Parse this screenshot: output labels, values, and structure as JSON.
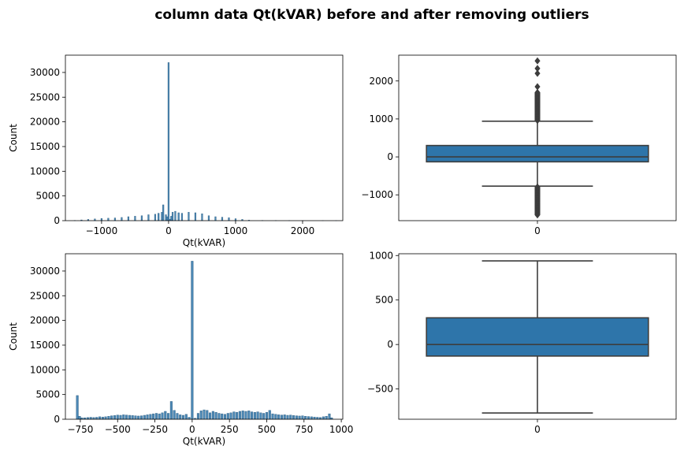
{
  "figure": {
    "title": "column data Qt(kVAR) before and after removing outliers",
    "colors": {
      "hist_fill": "#4c88b5",
      "hist_edge": "#2a5a7e",
      "box_fill": "#2e75aa",
      "box_line": "#3d3d3d"
    }
  },
  "chart_data": [
    {
      "id": "hist_before",
      "type": "bar",
      "title": "",
      "xlabel": "Qt(kVAR)",
      "ylabel": "Count",
      "xlim": [
        -1540,
        2600
      ],
      "ylim": [
        0,
        33500
      ],
      "xticks": [
        -1000,
        0,
        1000,
        2000
      ],
      "yticks": [
        0,
        5000,
        10000,
        15000,
        20000,
        25000,
        30000
      ],
      "bin_width": 21,
      "bins": [
        {
          "x": -1400,
          "y": 50
        },
        {
          "x": -1300,
          "y": 150
        },
        {
          "x": -1200,
          "y": 250
        },
        {
          "x": -1100,
          "y": 350
        },
        {
          "x": -1000,
          "y": 450
        },
        {
          "x": -900,
          "y": 500
        },
        {
          "x": -800,
          "y": 550
        },
        {
          "x": -700,
          "y": 650
        },
        {
          "x": -600,
          "y": 800
        },
        {
          "x": -500,
          "y": 900
        },
        {
          "x": -400,
          "y": 1000
        },
        {
          "x": -300,
          "y": 1200
        },
        {
          "x": -200,
          "y": 1300
        },
        {
          "x": -150,
          "y": 1500
        },
        {
          "x": -100,
          "y": 1700
        },
        {
          "x": -80,
          "y": 3200
        },
        {
          "x": -40,
          "y": 1200
        },
        {
          "x": -20,
          "y": 800
        },
        {
          "x": 0,
          "y": 32000
        },
        {
          "x": 20,
          "y": 300
        },
        {
          "x": 40,
          "y": 900
        },
        {
          "x": 60,
          "y": 1700
        },
        {
          "x": 100,
          "y": 1900
        },
        {
          "x": 150,
          "y": 1600
        },
        {
          "x": 200,
          "y": 1500
        },
        {
          "x": 300,
          "y": 1700
        },
        {
          "x": 400,
          "y": 1600
        },
        {
          "x": 500,
          "y": 1400
        },
        {
          "x": 600,
          "y": 1000
        },
        {
          "x": 700,
          "y": 800
        },
        {
          "x": 800,
          "y": 700
        },
        {
          "x": 900,
          "y": 600
        },
        {
          "x": 1000,
          "y": 400
        },
        {
          "x": 1100,
          "y": 250
        },
        {
          "x": 1200,
          "y": 100
        },
        {
          "x": 1400,
          "y": 50
        },
        {
          "x": 1600,
          "y": 30
        },
        {
          "x": 1800,
          "y": 20
        },
        {
          "x": 2000,
          "y": 10
        },
        {
          "x": 2300,
          "y": 8
        },
        {
          "x": 2500,
          "y": 5
        }
      ]
    },
    {
      "id": "box_before",
      "type": "box",
      "xticks": [
        "0"
      ],
      "ylim": [
        -1680,
        2680
      ],
      "yticks": [
        -1000,
        0,
        1000,
        2000
      ],
      "q1": -130,
      "median": 0,
      "q3": 300,
      "whisker_low": -770,
      "whisker_high": 940,
      "outliers_low_range": [
        -1530,
        -790
      ],
      "outliers_high_range": [
        960,
        1700
      ],
      "outliers_high_points": [
        1850,
        2200,
        2330,
        2530
      ]
    },
    {
      "id": "hist_after",
      "type": "bar",
      "title": "",
      "xlabel": "Qt(kVAR)",
      "ylabel": "Count",
      "xlim": [
        -850,
        1010
      ],
      "ylim": [
        0,
        33500
      ],
      "xticks": [
        -750,
        -500,
        -250,
        0,
        250,
        500,
        750,
        1000
      ],
      "yticks": [
        0,
        5000,
        10000,
        15000,
        20000,
        25000,
        30000
      ],
      "bin_width": 14,
      "bins": [
        {
          "x": -770,
          "y": 4800
        },
        {
          "x": -755,
          "y": 600
        },
        {
          "x": -740,
          "y": 300
        },
        {
          "x": -720,
          "y": 300
        },
        {
          "x": -700,
          "y": 350
        },
        {
          "x": -680,
          "y": 400
        },
        {
          "x": -660,
          "y": 350
        },
        {
          "x": -640,
          "y": 400
        },
        {
          "x": -620,
          "y": 500
        },
        {
          "x": -600,
          "y": 450
        },
        {
          "x": -580,
          "y": 500
        },
        {
          "x": -560,
          "y": 600
        },
        {
          "x": -540,
          "y": 700
        },
        {
          "x": -520,
          "y": 750
        },
        {
          "x": -500,
          "y": 850
        },
        {
          "x": -480,
          "y": 800
        },
        {
          "x": -460,
          "y": 900
        },
        {
          "x": -440,
          "y": 850
        },
        {
          "x": -420,
          "y": 800
        },
        {
          "x": -400,
          "y": 750
        },
        {
          "x": -380,
          "y": 700
        },
        {
          "x": -360,
          "y": 650
        },
        {
          "x": -340,
          "y": 700
        },
        {
          "x": -320,
          "y": 800
        },
        {
          "x": -300,
          "y": 900
        },
        {
          "x": -280,
          "y": 1000
        },
        {
          "x": -260,
          "y": 1100
        },
        {
          "x": -240,
          "y": 1200
        },
        {
          "x": -220,
          "y": 1100
        },
        {
          "x": -200,
          "y": 1300
        },
        {
          "x": -180,
          "y": 1600
        },
        {
          "x": -160,
          "y": 1200
        },
        {
          "x": -140,
          "y": 3600
        },
        {
          "x": -120,
          "y": 1800
        },
        {
          "x": -100,
          "y": 1200
        },
        {
          "x": -80,
          "y": 900
        },
        {
          "x": -60,
          "y": 800
        },
        {
          "x": -40,
          "y": 1000
        },
        {
          "x": -20,
          "y": 400
        },
        {
          "x": 0,
          "y": 32000
        },
        {
          "x": 20,
          "y": 200
        },
        {
          "x": 40,
          "y": 1200
        },
        {
          "x": 60,
          "y": 1700
        },
        {
          "x": 80,
          "y": 1900
        },
        {
          "x": 100,
          "y": 1800
        },
        {
          "x": 120,
          "y": 1300
        },
        {
          "x": 140,
          "y": 1600
        },
        {
          "x": 160,
          "y": 1400
        },
        {
          "x": 180,
          "y": 1200
        },
        {
          "x": 200,
          "y": 1100
        },
        {
          "x": 220,
          "y": 1000
        },
        {
          "x": 240,
          "y": 1200
        },
        {
          "x": 260,
          "y": 1300
        },
        {
          "x": 280,
          "y": 1500
        },
        {
          "x": 300,
          "y": 1400
        },
        {
          "x": 320,
          "y": 1600
        },
        {
          "x": 340,
          "y": 1700
        },
        {
          "x": 360,
          "y": 1600
        },
        {
          "x": 380,
          "y": 1700
        },
        {
          "x": 400,
          "y": 1500
        },
        {
          "x": 420,
          "y": 1400
        },
        {
          "x": 440,
          "y": 1500
        },
        {
          "x": 460,
          "y": 1300
        },
        {
          "x": 480,
          "y": 1200
        },
        {
          "x": 500,
          "y": 1400
        },
        {
          "x": 520,
          "y": 1800
        },
        {
          "x": 540,
          "y": 1100
        },
        {
          "x": 560,
          "y": 1000
        },
        {
          "x": 580,
          "y": 900
        },
        {
          "x": 600,
          "y": 850
        },
        {
          "x": 620,
          "y": 900
        },
        {
          "x": 640,
          "y": 800
        },
        {
          "x": 660,
          "y": 850
        },
        {
          "x": 680,
          "y": 750
        },
        {
          "x": 700,
          "y": 700
        },
        {
          "x": 720,
          "y": 650
        },
        {
          "x": 740,
          "y": 700
        },
        {
          "x": 760,
          "y": 600
        },
        {
          "x": 780,
          "y": 550
        },
        {
          "x": 800,
          "y": 500
        },
        {
          "x": 820,
          "y": 450
        },
        {
          "x": 840,
          "y": 400
        },
        {
          "x": 860,
          "y": 350
        },
        {
          "x": 880,
          "y": 500
        },
        {
          "x": 900,
          "y": 600
        },
        {
          "x": 920,
          "y": 1100
        },
        {
          "x": 935,
          "y": 300
        }
      ]
    },
    {
      "id": "box_after",
      "type": "box",
      "xticks": [
        "0"
      ],
      "ylim": [
        -840,
        1020
      ],
      "yticks": [
        -500,
        0,
        500,
        1000
      ],
      "q1": -130,
      "median": 0,
      "q3": 300,
      "whisker_low": -770,
      "whisker_high": 940
    }
  ]
}
